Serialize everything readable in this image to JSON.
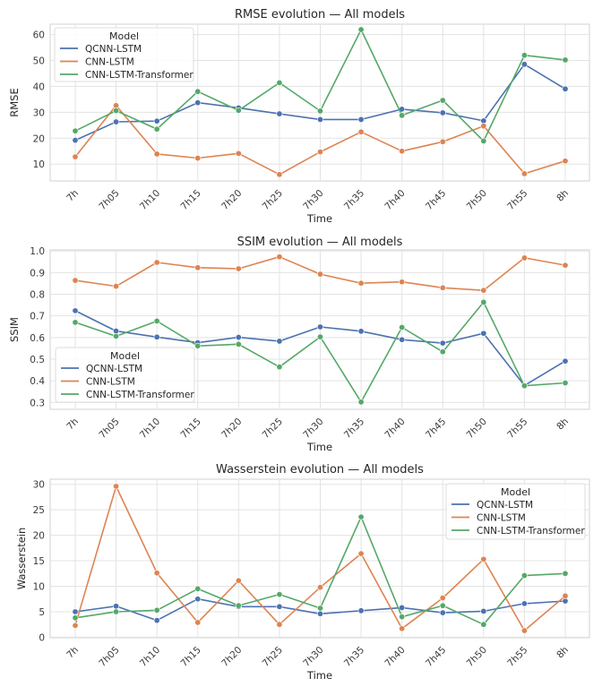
{
  "chart_data": [
    {
      "type": "line",
      "title": "RMSE evolution — All models",
      "xlabel": "Time",
      "ylabel": "RMSE",
      "categories": [
        "7h",
        "7h05",
        "7h10",
        "7h15",
        "7h20",
        "7h25",
        "7h30",
        "7h35",
        "7h40",
        "7h45",
        "7h50",
        "7h55",
        "8h"
      ],
      "yticks": [
        10,
        20,
        30,
        40,
        50,
        60
      ],
      "ylim": [
        3.5,
        64
      ],
      "grid": true,
      "legend": {
        "title": "Model",
        "placement": "top-left"
      },
      "series": [
        {
          "name": "QCNN-LSTM",
          "color": "#4c72b0",
          "values": [
            19.2,
            26.3,
            26.6,
            33.7,
            31.7,
            29.4,
            27.2,
            27.2,
            31.2,
            29.8,
            26.7,
            48.5,
            39.0
          ]
        },
        {
          "name": "CNN-LSTM",
          "color": "#dd8452",
          "values": [
            12.8,
            32.6,
            13.9,
            12.3,
            14.1,
            6.0,
            14.7,
            22.4,
            15.0,
            18.6,
            24.7,
            6.3,
            11.2
          ]
        },
        {
          "name": "CNN-LSTM-Transformer",
          "color": "#55a868",
          "values": [
            22.8,
            30.6,
            23.5,
            38.0,
            30.7,
            41.4,
            30.5,
            61.9,
            28.8,
            34.6,
            18.9,
            52.0,
            50.2
          ]
        }
      ]
    },
    {
      "type": "line",
      "title": "SSIM evolution — All models",
      "xlabel": "Time",
      "ylabel": "SSIM",
      "categories": [
        "7h",
        "7h05",
        "7h10",
        "7h15",
        "7h20",
        "7h25",
        "7h30",
        "7h35",
        "7h40",
        "7h45",
        "7h50",
        "7h55",
        "8h"
      ],
      "yticks": [
        0.3,
        0.4,
        0.5,
        0.6,
        0.7,
        0.8,
        0.9,
        1.0
      ],
      "ylim": [
        0.268,
        1.005
      ],
      "grid": true,
      "legend": {
        "title": "Model",
        "placement": "bottom-left"
      },
      "series": [
        {
          "name": "QCNN-LSTM",
          "color": "#4c72b0",
          "values": [
            0.724,
            0.63,
            0.602,
            0.576,
            0.601,
            0.583,
            0.649,
            0.629,
            0.59,
            0.574,
            0.619,
            0.378,
            0.491
          ]
        },
        {
          "name": "CNN-LSTM",
          "color": "#dd8452",
          "values": [
            0.864,
            0.837,
            0.947,
            0.923,
            0.918,
            0.973,
            0.893,
            0.851,
            0.857,
            0.83,
            0.818,
            0.968,
            0.934
          ]
        },
        {
          "name": "CNN-LSTM-Transformer",
          "color": "#55a868",
          "values": [
            0.67,
            0.606,
            0.676,
            0.561,
            0.569,
            0.464,
            0.603,
            0.302,
            0.647,
            0.534,
            0.763,
            0.377,
            0.39
          ]
        }
      ]
    },
    {
      "type": "line",
      "title": "Wasserstein evolution — All models",
      "xlabel": "Time",
      "ylabel": "Wasserstein",
      "categories": [
        "7h",
        "7h05",
        "7h10",
        "7h15",
        "7h20",
        "7h25",
        "7h30",
        "7h35",
        "7h40",
        "7h45",
        "7h50",
        "7h55",
        "8h"
      ],
      "yticks": [
        0,
        5,
        10,
        15,
        20,
        25,
        30
      ],
      "ylim": [
        -0.1,
        31.0
      ],
      "grid": true,
      "legend": {
        "title": "Model",
        "placement": "top-right"
      },
      "series": [
        {
          "name": "QCNN-LSTM",
          "color": "#4c72b0",
          "values": [
            5.0,
            6.1,
            3.3,
            7.5,
            6.0,
            6.0,
            4.6,
            5.2,
            5.8,
            4.8,
            5.1,
            6.6,
            7.1
          ]
        },
        {
          "name": "CNN-LSTM",
          "color": "#dd8452",
          "values": [
            2.3,
            29.6,
            12.6,
            2.9,
            11.1,
            2.5,
            9.8,
            16.4,
            1.7,
            7.7,
            15.3,
            1.3,
            8.1
          ]
        },
        {
          "name": "CNN-LSTM-Transformer",
          "color": "#55a868",
          "values": [
            3.8,
            5.0,
            5.3,
            9.5,
            6.2,
            8.4,
            5.7,
            23.6,
            4.0,
            6.2,
            2.5,
            12.1,
            12.5
          ]
        }
      ]
    }
  ]
}
